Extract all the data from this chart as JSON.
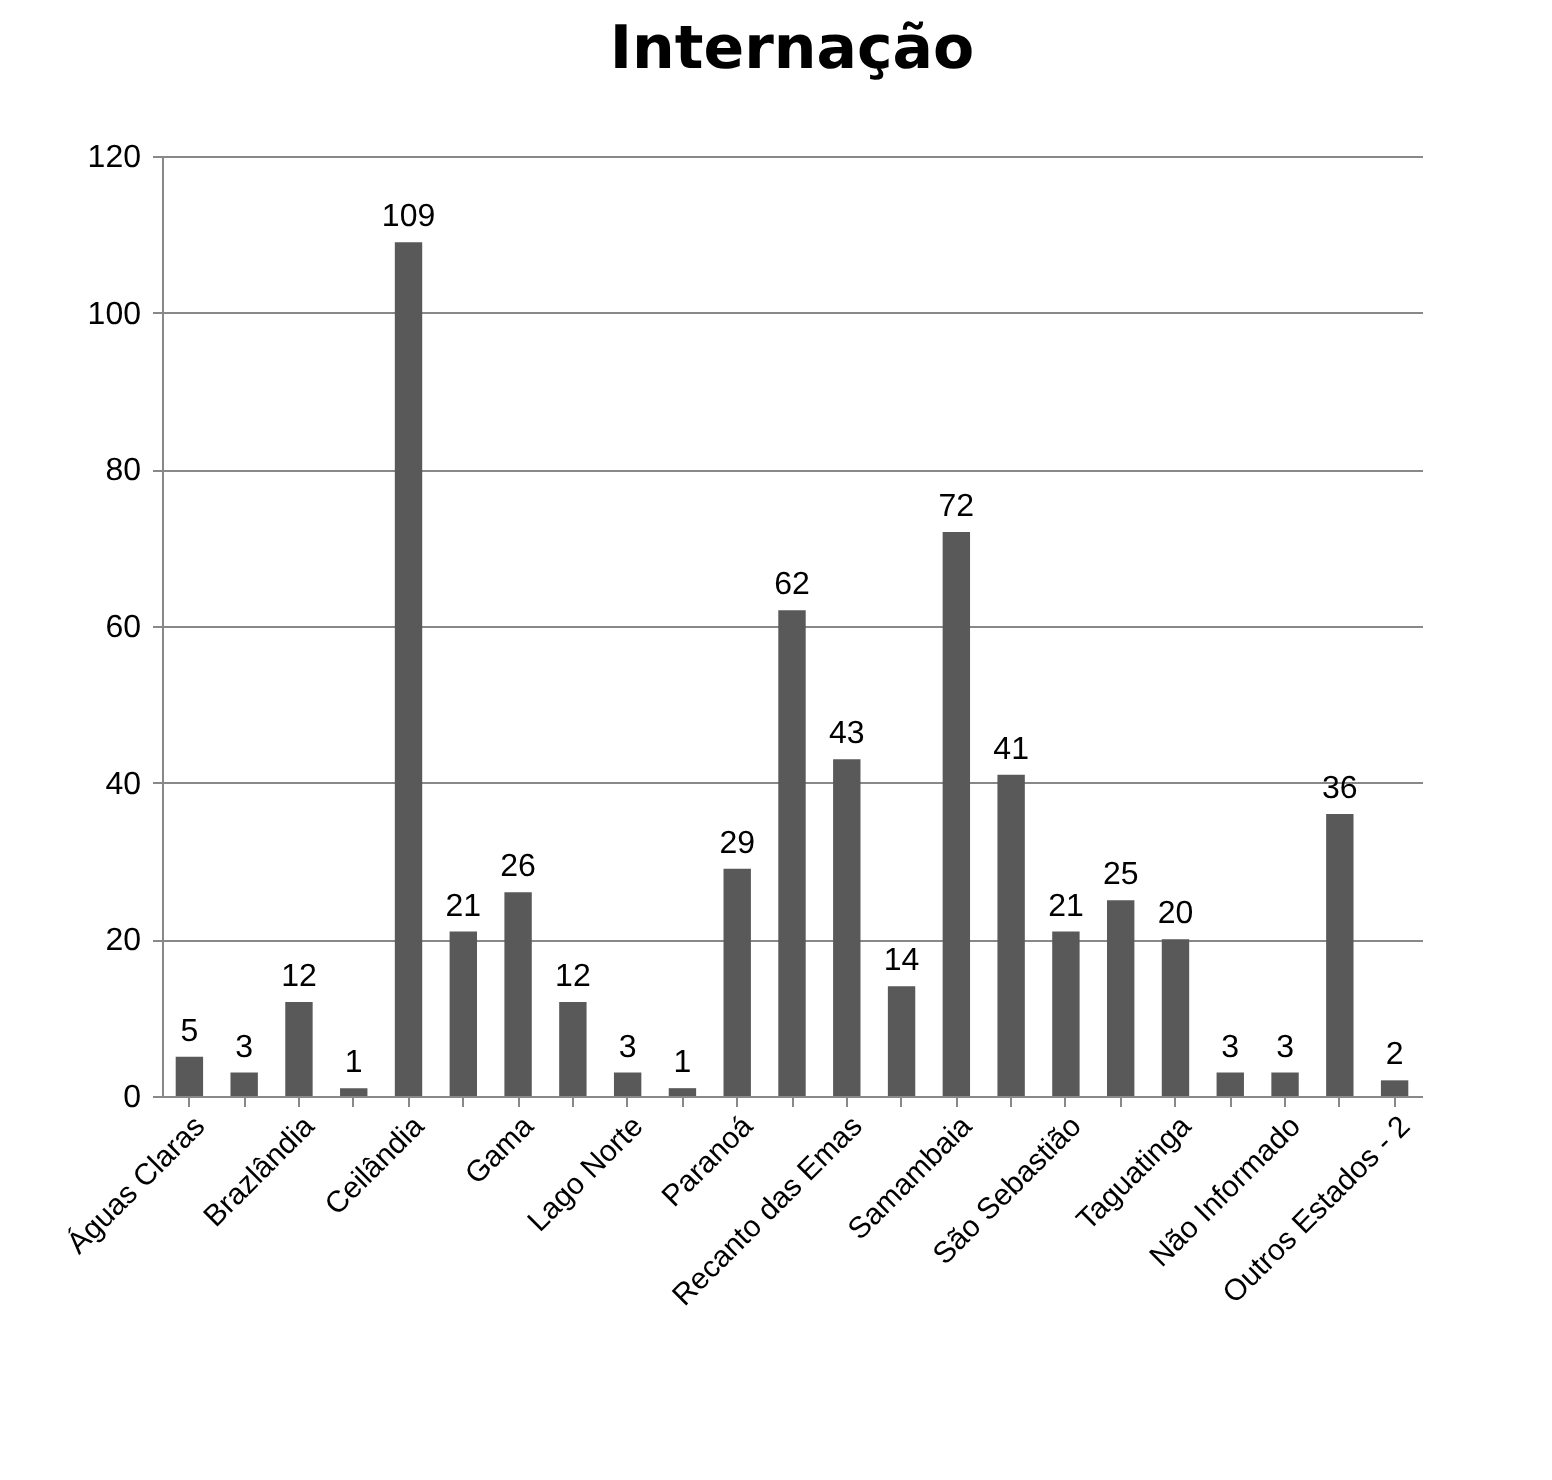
{
  "chart_data": {
    "type": "bar",
    "title": "Internação",
    "categories": [
      "Águas Claras",
      null,
      "Brazlândia",
      null,
      "Ceilândia",
      null,
      "Gama",
      null,
      "Lago Norte",
      null,
      "Paranoá",
      null,
      "Recanto das Emas",
      null,
      "Samambaia",
      null,
      "São Sebastião",
      null,
      "Taguatinga",
      null,
      "Não Informado",
      null,
      "Outros Estados - 2"
    ],
    "values": [
      5,
      3,
      12,
      1,
      109,
      21,
      26,
      12,
      3,
      1,
      29,
      62,
      43,
      14,
      72,
      41,
      21,
      25,
      20,
      3,
      3,
      36,
      2
    ],
    "color": "#595959",
    "ylim": [
      0,
      120
    ],
    "yticks": [
      0,
      20,
      40,
      60,
      80,
      100,
      120
    ],
    "grid": "y",
    "data_labels": true
  }
}
